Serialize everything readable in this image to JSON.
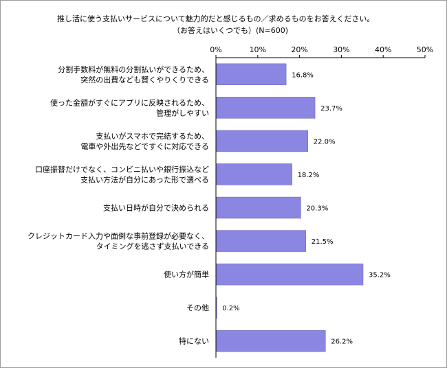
{
  "chart_data": {
    "type": "bar",
    "orientation": "horizontal",
    "title": "推し活に使う支払いサービスについて魅力的だと感じるもの／求めるものをお答えください。",
    "subtitle": "（お答えはいくつでも）(N=600)",
    "categories": [
      [
        "分割手数料が無料の分割払いができるため、",
        "突然の出費なども賢くやりくりできる"
      ],
      [
        "使った金額がすぐにアプリに反映されるため、",
        "管理がしやすい"
      ],
      [
        "支払いがスマホで完結するため、",
        "電車や外出先などですぐに対応できる"
      ],
      [
        "口座振替だけでなく、コンビニ払いや銀行振込など",
        "支払い方法が自分にあった形で選べる"
      ],
      [
        "支払い日時が自分で決められる"
      ],
      [
        "クレジットカード入力や面倒な事前登録が必要なく、",
        "タイミングを逃さず支払いできる"
      ],
      [
        "使い方が簡単"
      ],
      [
        "その他"
      ],
      [
        "特にない"
      ]
    ],
    "values": [
      16.8,
      23.7,
      22.0,
      18.2,
      20.3,
      21.5,
      35.2,
      0.2,
      26.2
    ],
    "value_labels": [
      "16.8%",
      "23.7%",
      "22.0%",
      "18.2%",
      "20.3%",
      "21.5%",
      "35.2%",
      "0.2%",
      "26.2%"
    ],
    "xlim": [
      0,
      50
    ],
    "ticks": [
      0,
      10,
      20,
      30,
      40,
      50
    ],
    "tick_labels": [
      "0%",
      "10%",
      "20%",
      "30%",
      "40%",
      "50%"
    ],
    "grid": false,
    "bar_color": "#8b86e2",
    "bar_edge_color": "#6a66b8"
  }
}
